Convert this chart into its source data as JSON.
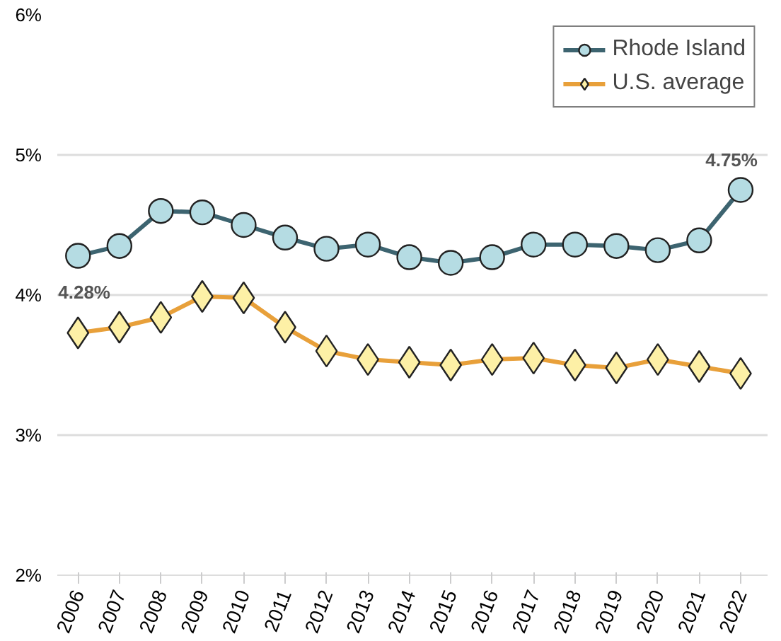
{
  "chart_data": {
    "type": "line",
    "categories": [
      "2006",
      "2007",
      "2008",
      "2009",
      "2010",
      "2011",
      "2012",
      "2013",
      "2014",
      "2015",
      "2016",
      "2017",
      "2018",
      "2019",
      "2020",
      "2021",
      "2022"
    ],
    "series": [
      {
        "name": "Rhode Island",
        "color": "#3d6470",
        "marker": "circle",
        "values": [
          4.28,
          4.35,
          4.6,
          4.59,
          4.5,
          4.41,
          4.33,
          4.36,
          4.27,
          4.23,
          4.27,
          4.36,
          4.36,
          4.35,
          4.32,
          4.39,
          4.75
        ]
      },
      {
        "name": "U.S. average",
        "color": "#e8a03a",
        "marker": "diamond",
        "values": [
          3.73,
          3.77,
          3.84,
          3.99,
          3.98,
          3.77,
          3.6,
          3.54,
          3.52,
          3.5,
          3.54,
          3.55,
          3.5,
          3.48,
          3.54,
          3.49,
          3.44
        ]
      }
    ],
    "ylim": [
      2,
      6
    ],
    "yticks": [
      {
        "value": 2,
        "label": "2%"
      },
      {
        "value": 3,
        "label": "3%"
      },
      {
        "value": 4,
        "label": "4%"
      },
      {
        "value": 5,
        "label": "5%"
      },
      {
        "value": 6,
        "label": "6%"
      }
    ],
    "grid": "y",
    "legend": "top right",
    "annotations": [
      {
        "text": "4.28%",
        "x": "2006",
        "y": 4.28
      },
      {
        "text": "4.75%",
        "x": "2022",
        "y": 4.75
      }
    ]
  }
}
